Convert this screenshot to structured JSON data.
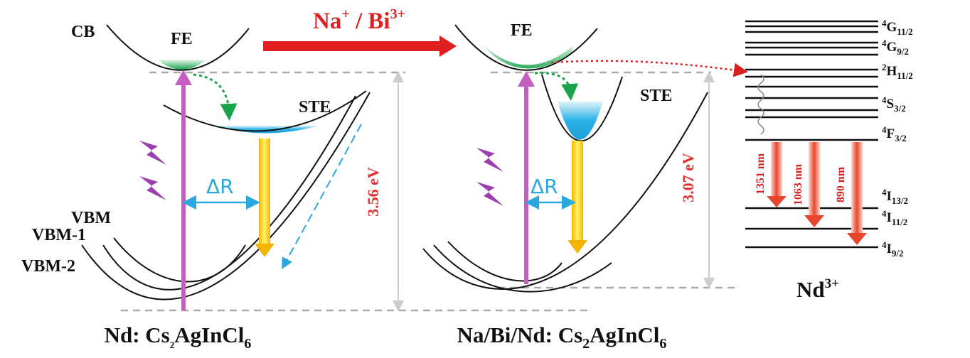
{
  "left_panel": {
    "cb": "CB",
    "fe": "FE",
    "ste": "STE",
    "vbm": "VBM",
    "vbm1": "VBM-1",
    "vbm2": "VBM-2",
    "delta_r": "ΔR",
    "gap": "3.56 eV",
    "title": {
      "prefix": "Nd: Cs",
      "sub1": "2",
      "mid": "AgInCl",
      "sub2": "6"
    }
  },
  "doping": {
    "main": "Na",
    "sup1": "+",
    "mid": " / Bi",
    "sup2": "3+"
  },
  "right_panel": {
    "fe": "FE",
    "ste": "STE",
    "delta_r": "ΔR",
    "gap": "3.07 eV",
    "title": {
      "prefix": "Na/Bi/Nd: Cs",
      "sub1": "2",
      "mid": "AgInCl",
      "sub2": "6"
    }
  },
  "levels": [
    {
      "pre": "4",
      "main": "G",
      "sub": "11/2"
    },
    {
      "pre": "4",
      "main": "G",
      "sub": "9/2"
    },
    {
      "pre": "2",
      "main": "H",
      "sub": "11/2"
    },
    {
      "pre": "4",
      "main": "S",
      "sub": "3/2"
    },
    {
      "pre": "4",
      "main": "F",
      "sub": "3/2"
    },
    {
      "pre": "4",
      "main": "I",
      "sub": "13/2"
    },
    {
      "pre": "4",
      "main": "I",
      "sub": "11/2"
    },
    {
      "pre": "4",
      "main": "I",
      "sub": "9/2"
    }
  ],
  "emissions": [
    "1351 nm",
    "1063 nm",
    "890 nm"
  ],
  "ion": {
    "main": "Nd",
    "sup": "3+"
  }
}
